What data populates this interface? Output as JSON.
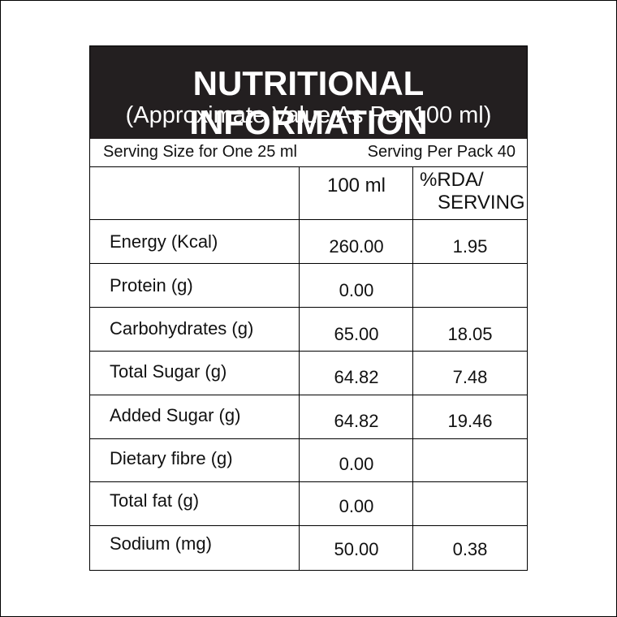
{
  "header": {
    "title": "NUTRITIONAL INFORMATION",
    "subtitle": "(Approximate Value As Per 100 ml)"
  },
  "serving": {
    "size": "Serving Size for One 25 ml",
    "per_pack": "Serving Per Pack 40"
  },
  "columns": {
    "per_100": "100 ml",
    "rda_line1": "%RDA/",
    "rda_line2": "SERVING"
  },
  "rows": [
    {
      "name": "Energy (Kcal)",
      "value": "260.00",
      "rda": "1.95"
    },
    {
      "name": "Protein (g)",
      "value": "0.00",
      "rda": ""
    },
    {
      "name": "Carbohydrates (g)",
      "value": "65.00",
      "rda": "18.05"
    },
    {
      "name": "Total Sugar (g)",
      "value": "64.82",
      "rda": "7.48"
    },
    {
      "name": "Added Sugar (g)",
      "value": "64.82",
      "rda": "19.46"
    },
    {
      "name": "Dietary fibre (g)",
      "value": "0.00",
      "rda": ""
    },
    {
      "name": "Total fat (g)",
      "value": "0.00",
      "rda": ""
    },
    {
      "name": "Sodium (mg)",
      "value": "50.00",
      "rda": "0.38"
    }
  ]
}
